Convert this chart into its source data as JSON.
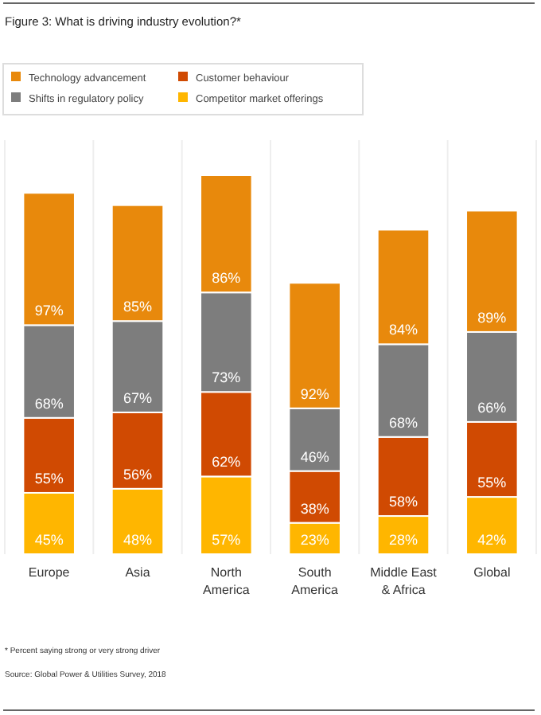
{
  "chart_data": {
    "type": "bar",
    "title": "Figure 3: What is driving industry evolution?*",
    "categories": [
      "Europe",
      "Asia",
      "North America",
      "South America",
      "Middle East & Africa",
      "Global"
    ],
    "stacked": true,
    "legend": "top left",
    "series": [
      {
        "name": "Competitor market offerings",
        "color": "#ffb600",
        "values": [
          45,
          48,
          57,
          23,
          28,
          42
        ],
        "value_labels": [
          "45%",
          "48%",
          "57%",
          "23%",
          "28%",
          "42%"
        ]
      },
      {
        "name": "Customer behaviour",
        "color": "#d04a02",
        "values": [
          55,
          56,
          62,
          38,
          58,
          55
        ],
        "value_labels": [
          "55%",
          "56%",
          "62%",
          "38%",
          "58%",
          "55%"
        ]
      },
      {
        "name": "Shifts in regulatory policy",
        "color": "#7d7d7d",
        "values": [
          68,
          67,
          73,
          46,
          68,
          66
        ],
        "value_labels": [
          "68%",
          "67%",
          "73%",
          "46%",
          "68%",
          "66%"
        ]
      },
      {
        "name": "Technology advancement",
        "color": "#e8890c",
        "values": [
          97,
          85,
          86,
          92,
          84,
          89
        ],
        "value_labels": [
          "97%",
          "85%",
          "86%",
          "92%",
          "84%",
          "89%"
        ]
      }
    ],
    "annotations": [
      "* Percent saying strong or very strong driver",
      "Source: Global Power & Utilities Survey, 2018"
    ]
  }
}
